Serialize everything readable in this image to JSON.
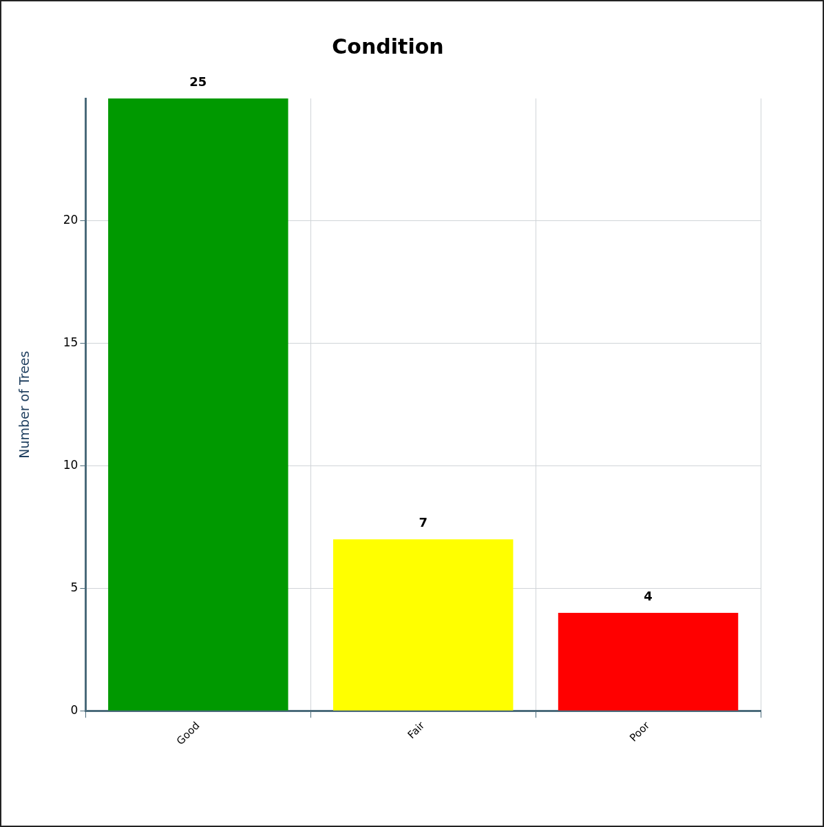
{
  "chart_data": {
    "type": "bar",
    "title": "Condition",
    "ylabel": "Number of Trees",
    "categories": [
      "Good",
      "Fair",
      "Poor"
    ],
    "values": [
      25,
      7,
      4
    ],
    "colors": [
      "#009900",
      "#ffff00",
      "#ff0000"
    ],
    "ylim": [
      0,
      25
    ],
    "yticks": [
      0,
      5,
      10,
      15,
      20
    ],
    "grid": true,
    "data_labels": true,
    "legend": false
  }
}
